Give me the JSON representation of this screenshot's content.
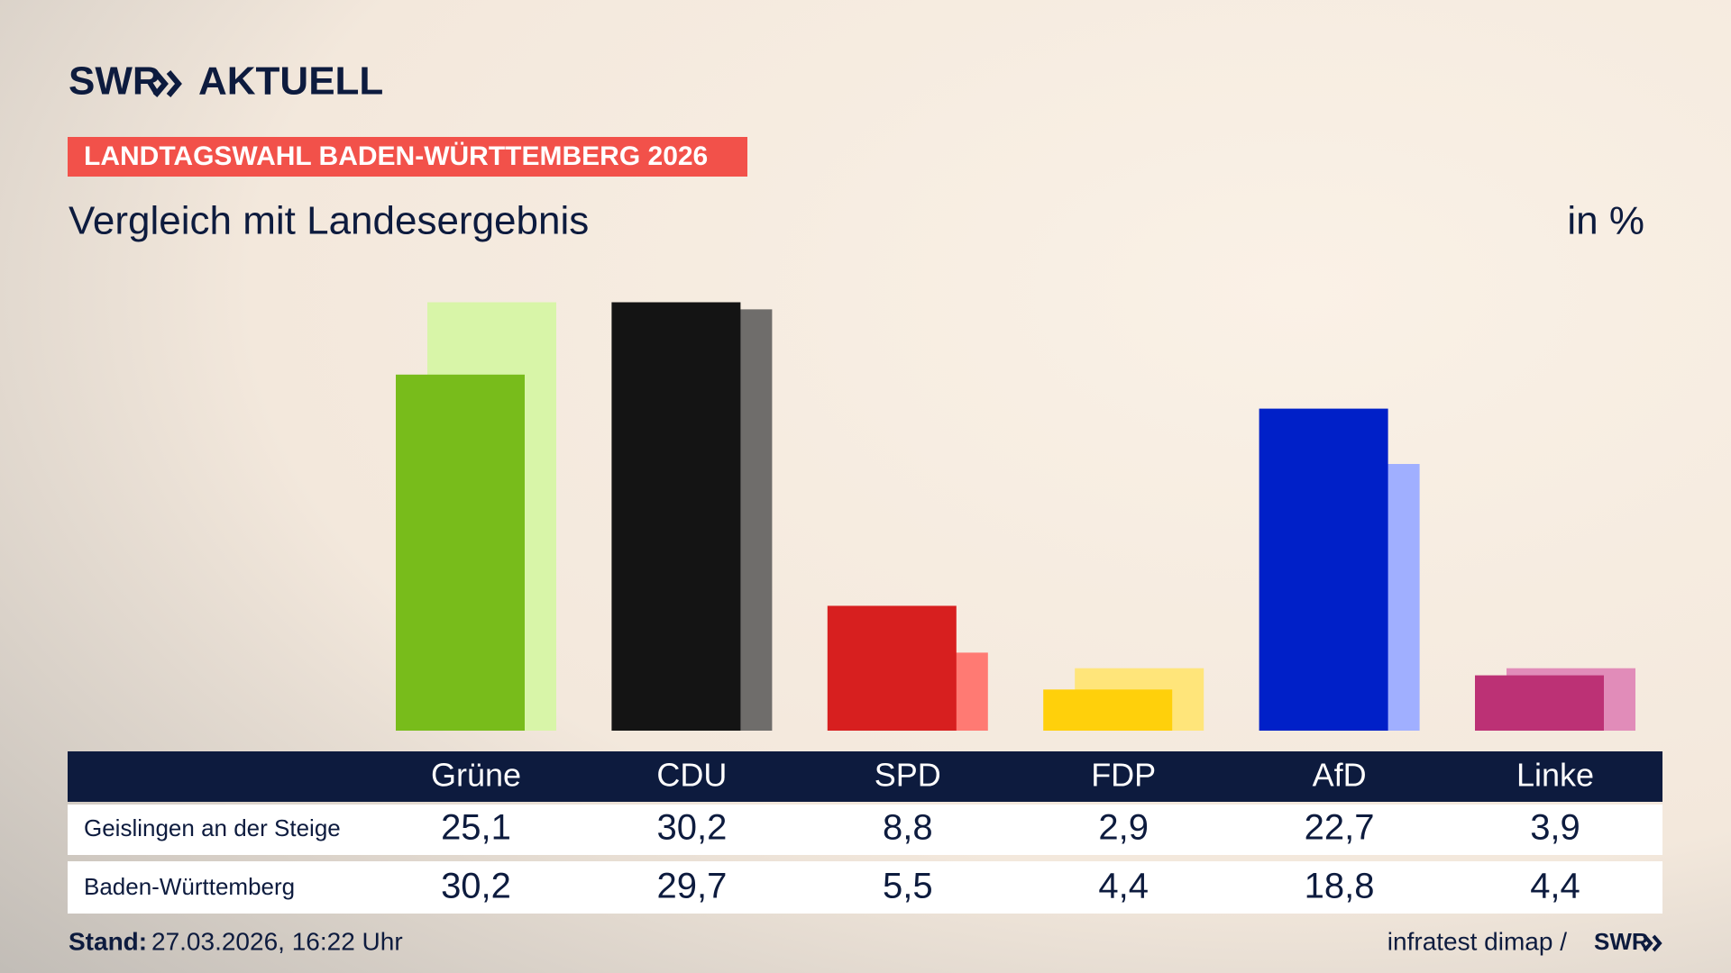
{
  "header": {
    "logo": "SWR",
    "section": "AKTUELL"
  },
  "chart_data": {
    "type": "bar",
    "kicker": "LANDTAGSWAHL BADEN-WÜRTTEMBERG 2026",
    "title": "Vergleich mit Landesergebnis",
    "unit_label": "in %",
    "categories": [
      "Grüne",
      "CDU",
      "SPD",
      "FDP",
      "AfD",
      "Linke"
    ],
    "series": [
      {
        "name": "Geislingen an der Steige",
        "colors": [
          "#78bc1b",
          "#141414",
          "#d71f1f",
          "#ffd00b",
          "#0020c8",
          "#bc3175"
        ],
        "values": [
          25.1,
          30.2,
          8.8,
          2.9,
          22.7,
          3.9
        ],
        "value_labels": [
          "25,1",
          "30,2",
          "8,8",
          "2,9",
          "22,7",
          "3,9"
        ]
      },
      {
        "name": "Baden-Württemberg",
        "colors": [
          "#d8f5a8",
          "#6f6d6b",
          "#ff7a73",
          "#ffe57a",
          "#a0afff",
          "#e18cb9"
        ],
        "values": [
          30.2,
          29.7,
          5.5,
          4.4,
          18.8,
          4.4
        ],
        "value_labels": [
          "30,2",
          "29,7",
          "5,5",
          "4,4",
          "18,8",
          "4,4"
        ]
      }
    ]
  },
  "footer": {
    "stand_label": "Stand:",
    "stand_value": "27.03.2026, 16:22 Uhr",
    "source": "infratest dimap /",
    "source_logo": "SWR"
  }
}
